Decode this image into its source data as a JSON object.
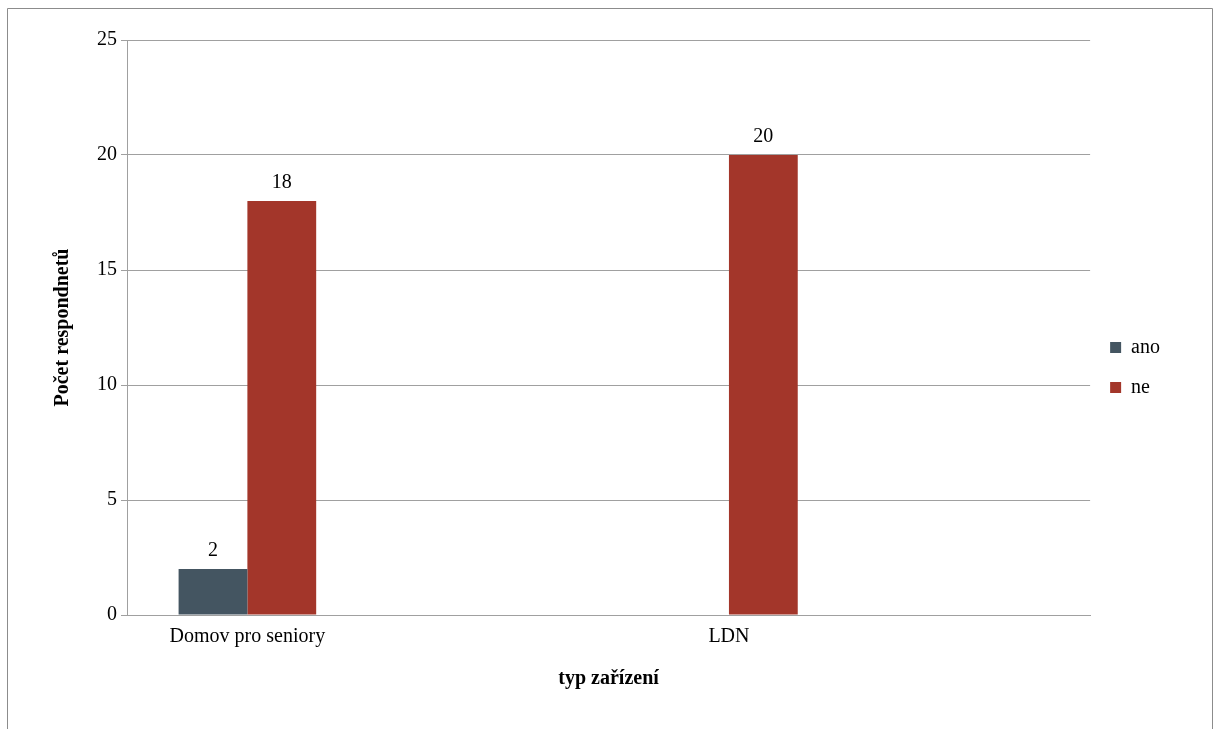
{
  "chart_data": {
    "type": "bar",
    "xlabel": "typ zařízení",
    "ylabel": "Počet respondnetů",
    "categories": [
      "Domov pro seniory",
      null,
      "LDN",
      null
    ],
    "series": [
      {
        "name": "ano",
        "color": "#445561",
        "values": [
          2,
          null,
          null,
          null
        ]
      },
      {
        "name": "ne",
        "color": "#a3362a",
        "values": [
          18,
          null,
          20,
          null
        ]
      }
    ],
    "ylim": [
      0,
      25
    ],
    "yticks": [
      0,
      5,
      10,
      15,
      20,
      25
    ],
    "grid": "y",
    "legend": "right",
    "data_labels": true
  }
}
